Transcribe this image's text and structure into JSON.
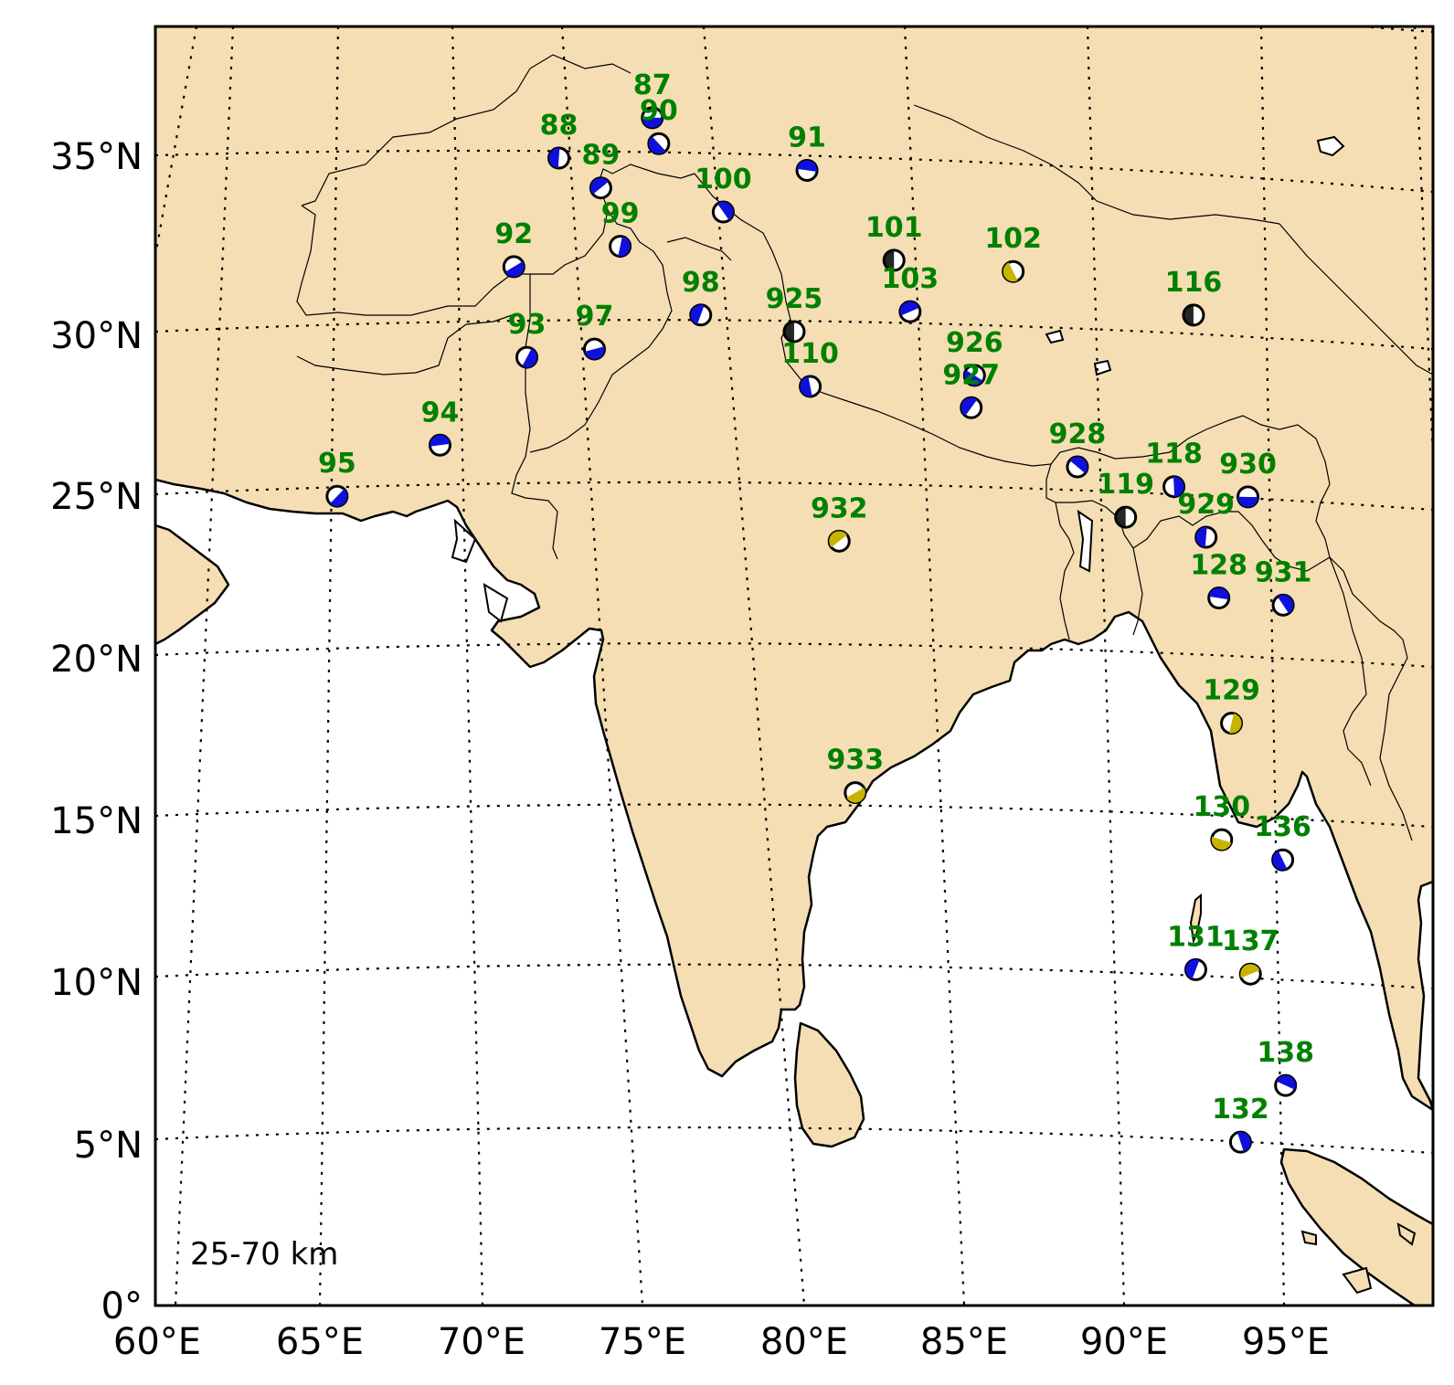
{
  "depth_note": "25-70 km",
  "axes": {
    "lon_ticks": [
      "60°E",
      "65°E",
      "70°E",
      "75°E",
      "80°E",
      "85°E",
      "90°E",
      "95°E"
    ],
    "lat_ticks": [
      "0°",
      "5°N",
      "10°N",
      "15°N",
      "20°N",
      "25°N",
      "30°N",
      "35°N"
    ]
  },
  "colors": {
    "land": "#f5deb3",
    "ocean": "#ffffff",
    "label": "#008000",
    "blue": "#1010dd",
    "yellow": "#c8b400",
    "grid": "#000000"
  },
  "events": [
    {
      "id": "87",
      "lon": 75.4,
      "lat": 36.8,
      "color": "blue"
    },
    {
      "id": "90",
      "lon": 75.6,
      "lat": 36.0,
      "color": "blue"
    },
    {
      "id": "88",
      "lon": 72.5,
      "lat": 35.5,
      "color": "blue"
    },
    {
      "id": "89",
      "lon": 73.8,
      "lat": 34.6,
      "color": "blue"
    },
    {
      "id": "91",
      "lon": 80.2,
      "lat": 35.2,
      "color": "blue"
    },
    {
      "id": "100",
      "lon": 77.6,
      "lat": 33.9,
      "color": "blue"
    },
    {
      "id": "99",
      "lon": 74.4,
      "lat": 32.8,
      "color": "blue"
    },
    {
      "id": "92",
      "lon": 71.1,
      "lat": 32.1,
      "color": "blue"
    },
    {
      "id": "101",
      "lon": 82.9,
      "lat": 32.4,
      "color": "white"
    },
    {
      "id": "102",
      "lon": 86.6,
      "lat": 32.0,
      "color": "yellow"
    },
    {
      "id": "98",
      "lon": 76.9,
      "lat": 30.7,
      "color": "blue"
    },
    {
      "id": "103",
      "lon": 83.4,
      "lat": 30.8,
      "color": "blue"
    },
    {
      "id": "925",
      "lon": 79.8,
      "lat": 30.2,
      "color": "white"
    },
    {
      "id": "116",
      "lon": 92.2,
      "lat": 30.5,
      "color": "white"
    },
    {
      "id": "93",
      "lon": 71.5,
      "lat": 29.3,
      "color": "blue"
    },
    {
      "id": "97",
      "lon": 73.6,
      "lat": 29.6,
      "color": "blue"
    },
    {
      "id": "926",
      "lon": 85.4,
      "lat": 28.8,
      "color": "blue"
    },
    {
      "id": "110",
      "lon": 80.3,
      "lat": 28.5,
      "color": "blue"
    },
    {
      "id": "927",
      "lon": 85.3,
      "lat": 27.8,
      "color": "blue"
    },
    {
      "id": "94",
      "lon": 68.8,
      "lat": 26.5,
      "color": "blue"
    },
    {
      "id": "928",
      "lon": 88.6,
      "lat": 25.9,
      "color": "blue"
    },
    {
      "id": "118",
      "lon": 91.6,
      "lat": 25.2,
      "color": "blue"
    },
    {
      "id": "95",
      "lon": 65.6,
      "lat": 24.8,
      "color": "blue"
    },
    {
      "id": "930",
      "lon": 93.9,
      "lat": 24.8,
      "color": "blue"
    },
    {
      "id": "119",
      "lon": 90.1,
      "lat": 24.3,
      "color": "white"
    },
    {
      "id": "929",
      "lon": 92.6,
      "lat": 23.6,
      "color": "blue"
    },
    {
      "id": "932",
      "lon": 81.2,
      "lat": 23.7,
      "color": "yellow"
    },
    {
      "id": "128",
      "lon": 93.0,
      "lat": 21.7,
      "color": "blue"
    },
    {
      "id": "931",
      "lon": 95.0,
      "lat": 21.4,
      "color": "blue"
    },
    {
      "id": "129",
      "lon": 93.4,
      "lat": 17.8,
      "color": "yellow"
    },
    {
      "id": "933",
      "lon": 81.7,
      "lat": 15.9,
      "color": "yellow"
    },
    {
      "id": "130",
      "lon": 93.1,
      "lat": 14.2,
      "color": "yellow"
    },
    {
      "id": "136",
      "lon": 95.0,
      "lat": 13.5,
      "color": "blue"
    },
    {
      "id": "131",
      "lon": 92.3,
      "lat": 10.2,
      "color": "blue"
    },
    {
      "id": "137",
      "lon": 94.0,
      "lat": 10.0,
      "color": "yellow"
    },
    {
      "id": "138",
      "lon": 95.1,
      "lat": 6.5,
      "color": "blue"
    },
    {
      "id": "132",
      "lon": 93.7,
      "lat": 4.8,
      "color": "blue"
    }
  ]
}
